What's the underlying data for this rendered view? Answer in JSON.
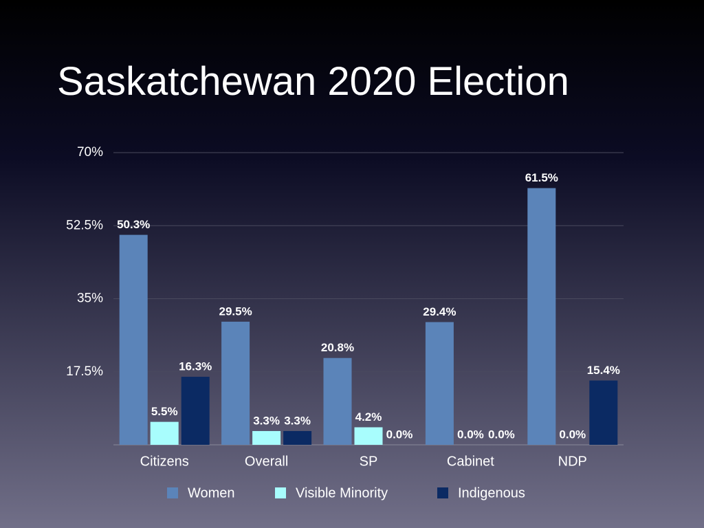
{
  "chart_data": {
    "type": "bar",
    "title": "Saskatchewan 2020 Election",
    "categories": [
      "Citizens",
      "Overall",
      "SP",
      "Cabinet",
      "NDP"
    ],
    "series": [
      {
        "name": "Women",
        "color": "#5b84b9",
        "values": [
          50.3,
          29.5,
          20.8,
          29.4,
          61.5
        ],
        "value_labels": [
          "50.3%",
          "29.5%",
          "20.8%",
          "29.4%",
          "61.5%"
        ]
      },
      {
        "name": "Visible Minority",
        "color": "#a8fdfd",
        "values": [
          5.5,
          3.3,
          4.2,
          0.0,
          0.0
        ],
        "value_labels": [
          "5.5%",
          "3.3%",
          "4.2%",
          "0.0%",
          "0.0%"
        ]
      },
      {
        "name": "Indigenous",
        "color": "#0b2a63",
        "values": [
          16.3,
          3.3,
          0.0,
          0.0,
          15.4
        ],
        "value_labels": [
          "16.3%",
          "3.3%",
          "0.0%",
          "0.0%",
          "15.4%"
        ]
      }
    ],
    "ylim": [
      0,
      70
    ],
    "yticks": [
      {
        "value": 17.5,
        "label": "17.5%"
      },
      {
        "value": 35,
        "label": "35%"
      },
      {
        "value": 52.5,
        "label": "52.5%"
      },
      {
        "value": 70,
        "label": "70%"
      }
    ],
    "grid": true
  }
}
